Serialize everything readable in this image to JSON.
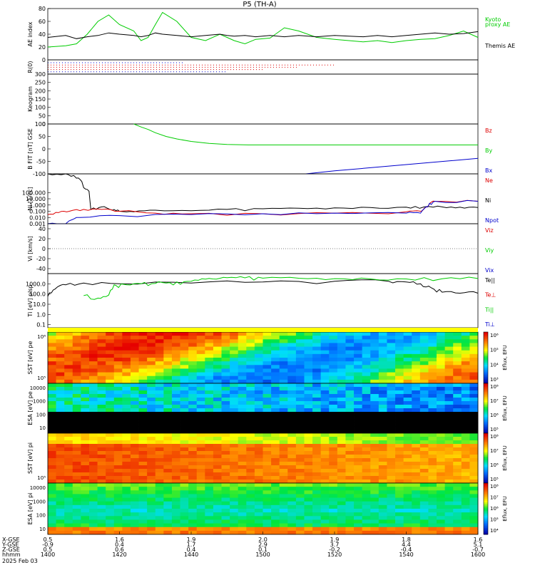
{
  "title": "P5 (TH-A)",
  "date_label": "2025 Feb 03",
  "colors": {
    "green": "#00cc00",
    "red": "#dd0000",
    "blue": "#0000cc",
    "black": "#000000",
    "yellow": "#ffff00"
  },
  "chart_data": [
    {
      "type": "line",
      "title": "",
      "ylabel": "AE index",
      "ylim": [
        0,
        80
      ],
      "yticks": [
        0,
        20,
        40,
        60,
        80
      ],
      "legend": [
        {
          "label": "Kyoto",
          "color": "#00cc00"
        },
        {
          "label": "proxy AE",
          "color": "#00cc00"
        },
        {
          "label": "Themis AE",
          "color": "#000000"
        }
      ],
      "x_minutes": [
        0,
        5,
        8,
        11,
        14,
        17,
        20,
        24,
        26,
        28,
        30,
        32,
        36,
        40,
        44,
        48,
        50,
        52,
        55,
        58,
        62,
        66,
        70,
        75,
        80,
        84,
        88,
        92,
        96,
        100,
        104,
        108,
        112,
        116,
        120
      ],
      "series": [
        {
          "name": "Kyoto proxy AE",
          "color": "#00cc00",
          "values": [
            20,
            22,
            25,
            40,
            60,
            70,
            55,
            45,
            30,
            35,
            55,
            74,
            60,
            35,
            30,
            40,
            35,
            30,
            25,
            32,
            34,
            50,
            45,
            35,
            32,
            30,
            28,
            30,
            27,
            30,
            32,
            33,
            38,
            45,
            35
          ]
        },
        {
          "name": "Themis AE",
          "color": "#000000",
          "values": [
            35,
            38,
            33,
            36,
            38,
            42,
            40,
            38,
            36,
            38,
            42,
            40,
            38,
            36,
            38,
            40,
            38,
            37,
            38,
            36,
            38,
            36,
            38,
            36,
            38,
            37,
            36,
            38,
            36,
            38,
            40,
            42,
            40,
            41,
            44
          ]
        }
      ]
    },
    {
      "type": "scatter",
      "title": "",
      "ylabel": "R(0)",
      "note_rows": [
        {
          "color": "#0000cc",
          "end_minute": 38
        },
        {
          "color": "#dd0000",
          "end_minute": 80
        },
        {
          "color": "#dd0000",
          "end_minute": 70
        },
        {
          "color": "#dd0000",
          "end_minute": 60
        },
        {
          "color": "#0000cc",
          "end_minute": 50
        }
      ]
    },
    {
      "type": "heatmap",
      "title": "",
      "ylabel": "Keogram",
      "ylim": [
        0,
        300
      ],
      "yticks": [
        0,
        50,
        100,
        150,
        200,
        250,
        300
      ]
    },
    {
      "type": "line",
      "title": "",
      "ylabel": "B FIT [nT] GSE",
      "ylim": [
        -100,
        100
      ],
      "yticks": [
        -100,
        -50,
        0,
        50,
        100
      ],
      "legend": [
        {
          "label": "Bz",
          "color": "#dd0000"
        },
        {
          "label": "By",
          "color": "#00cc00"
        },
        {
          "label": "Bx",
          "color": "#0000cc"
        }
      ],
      "series": [
        {
          "name": "By",
          "color": "#00cc00",
          "x_minutes": [
            24,
            26,
            28,
            30,
            33,
            36,
            40,
            45,
            50,
            56,
            120
          ],
          "values": [
            100,
            88,
            78,
            65,
            50,
            40,
            30,
            22,
            18,
            16,
            16
          ]
        },
        {
          "name": "Bx",
          "color": "#0000cc",
          "x_minutes": [
            72,
            80,
            88,
            96,
            104,
            112,
            120
          ],
          "values": [
            -100,
            -88,
            -78,
            -68,
            -58,
            -48,
            -38
          ]
        }
      ]
    },
    {
      "type": "line",
      "title": "",
      "ylabel": "Ni [1/cc]",
      "yscale": "log",
      "ylim": [
        0.001,
        100000
      ],
      "yticks": [
        "0.001",
        "0.010",
        "0.100",
        "1.000",
        "10.000",
        "100.000"
      ],
      "legend": [
        {
          "label": "Ne",
          "color": "#dd0000"
        },
        {
          "label": "Ni",
          "color": "#000000"
        },
        {
          "label": "Npot",
          "color": "#0000cc"
        }
      ],
      "series": [
        {
          "name": "Ni",
          "color": "#000000",
          "x_minutes": [
            0,
            5,
            8,
            10,
            12,
            15,
            18,
            20,
            24,
            30,
            40,
            50,
            60,
            70,
            80,
            90,
            100,
            105,
            110,
            115,
            120
          ],
          "values": [
            100000,
            100000,
            20000,
            600,
            0.2,
            0.5,
            0.15,
            0.1,
            0.08,
            0.15,
            0.12,
            0.2,
            0.25,
            0.3,
            0.35,
            0.4,
            0.45,
            0.5,
            0.5,
            0.45,
            0.4
          ]
        },
        {
          "name": "Ne",
          "color": "#dd0000",
          "x_minutes": [
            0,
            3,
            6,
            10,
            15,
            20,
            30,
            40,
            60,
            80,
            100,
            104,
            106,
            108,
            120
          ],
          "values": [
            0.03,
            0.06,
            0.1,
            0.2,
            0.2,
            0.1,
            0.05,
            0.04,
            0.04,
            0.05,
            0.08,
            0.1,
            0.5,
            4,
            4
          ]
        },
        {
          "name": "Npot",
          "color": "#0000cc",
          "x_minutes": [
            0,
            5,
            9,
            20,
            40,
            60,
            80,
            100,
            104,
            106,
            108,
            120
          ],
          "values": [
            0.001,
            0.001,
            0.01,
            0.02,
            0.03,
            0.04,
            0.05,
            0.05,
            0.05,
            0.5,
            4,
            4
          ]
        }
      ]
    },
    {
      "type": "line",
      "title": "",
      "ylabel": "Vi [km/s]",
      "ylim": [
        -50,
        50
      ],
      "yticks": [
        -40,
        -20,
        0,
        20,
        40
      ],
      "legend": [
        {
          "label": "Viz",
          "color": "#dd0000"
        },
        {
          "label": "Viy",
          "color": "#00cc00"
        },
        {
          "label": "Vix",
          "color": "#0000cc"
        }
      ]
    },
    {
      "type": "line",
      "title": "",
      "ylabel": "Ti [eV] plsp",
      "yscale": "log",
      "ylim": [
        0.05,
        10000
      ],
      "yticks": [
        "0.1",
        "1.0",
        "10.0",
        "100.0",
        "1000.0"
      ],
      "legend": [
        {
          "label": "Te||",
          "color": "#000000"
        },
        {
          "label": "Te⊥",
          "color": "#dd0000"
        },
        {
          "label": "Ti||",
          "color": "#00cc00"
        },
        {
          "label": "Ti⊥",
          "color": "#0000cc"
        }
      ],
      "series": [
        {
          "name": "Te||",
          "color": "#000000",
          "x_minutes": [
            0,
            2,
            5,
            10,
            20,
            40,
            60,
            80,
            95,
            100,
            104,
            107,
            110,
            115,
            120
          ],
          "values": [
            60,
            300,
            800,
            1200,
            1000,
            1200,
            1500,
            1800,
            1800,
            1500,
            1000,
            400,
            150,
            120,
            120
          ]
        },
        {
          "name": "Ti||",
          "color": "#00cc00",
          "x_minutes": [
            10,
            14,
            17,
            19,
            22,
            26,
            30,
            34,
            38,
            42,
            46,
            50,
            55,
            60,
            70,
            80,
            90,
            100,
            110,
            120
          ],
          "values": [
            70,
            40,
            80,
            700,
            800,
            1000,
            1100,
            1300,
            1600,
            2200,
            3000,
            4000,
            3800,
            3600,
            3500,
            3200,
            3000,
            3000,
            3100,
            3300
          ]
        }
      ]
    },
    {
      "type": "heatmap",
      "title": "",
      "ylabel": "SST [eV] pe",
      "yticks": [
        "10⁵",
        "10⁶"
      ],
      "colorbar": {
        "label": "Eflux, EFU",
        "ticks": [
          "10³",
          "10⁴",
          "10⁵",
          "10⁶"
        ]
      }
    },
    {
      "type": "heatmap",
      "title": "",
      "ylabel": "ESA [eV] pe",
      "yticks": [
        "10",
        "100",
        "1000",
        "10000"
      ],
      "colorbar": {
        "label": "Eflux, EFU",
        "ticks": [
          "10⁵",
          "10⁶",
          "10⁷",
          "10⁸"
        ]
      }
    },
    {
      "type": "heatmap",
      "title": "",
      "ylabel": "SST [eV] pi",
      "yticks": [
        "10⁵"
      ],
      "colorbar": {
        "label": "Eflux, EFU",
        "ticks": [
          "10⁵",
          "10⁶",
          "10⁷",
          "10⁸"
        ]
      }
    },
    {
      "type": "heatmap",
      "title": "",
      "ylabel": "ESA [eV] pi",
      "yticks": [
        "10",
        "100",
        "1000",
        "10000"
      ],
      "colorbar": {
        "label": "Eflux, EFU",
        "ticks": [
          "10⁴",
          "10⁵",
          "10⁶",
          "10⁷",
          "10⁸"
        ]
      }
    }
  ],
  "orbit_table": {
    "row_labels": [
      "X-GSE",
      "Y-GSE",
      "Z-GSE",
      "hhmm"
    ],
    "columns": [
      {
        "x": "0.5",
        "y": "-0.9",
        "z": "0.5",
        "t": "1400"
      },
      {
        "x": "1.6",
        "y": "0.4",
        "z": "0.6",
        "t": "1420"
      },
      {
        "x": "1.9",
        "y": "1.7",
        "z": "0.4",
        "t": "1440"
      },
      {
        "x": "2.0",
        "y": "2.9",
        "z": "0.1",
        "t": "1500"
      },
      {
        "x": "1.9",
        "y": "3.7",
        "z": "-0.2",
        "t": "1520"
      },
      {
        "x": "1.8",
        "y": "4.4",
        "z": "-0.4",
        "t": "1540"
      },
      {
        "x": "1.6",
        "y": "5.1",
        "z": "-0.7",
        "t": "1600"
      }
    ]
  }
}
